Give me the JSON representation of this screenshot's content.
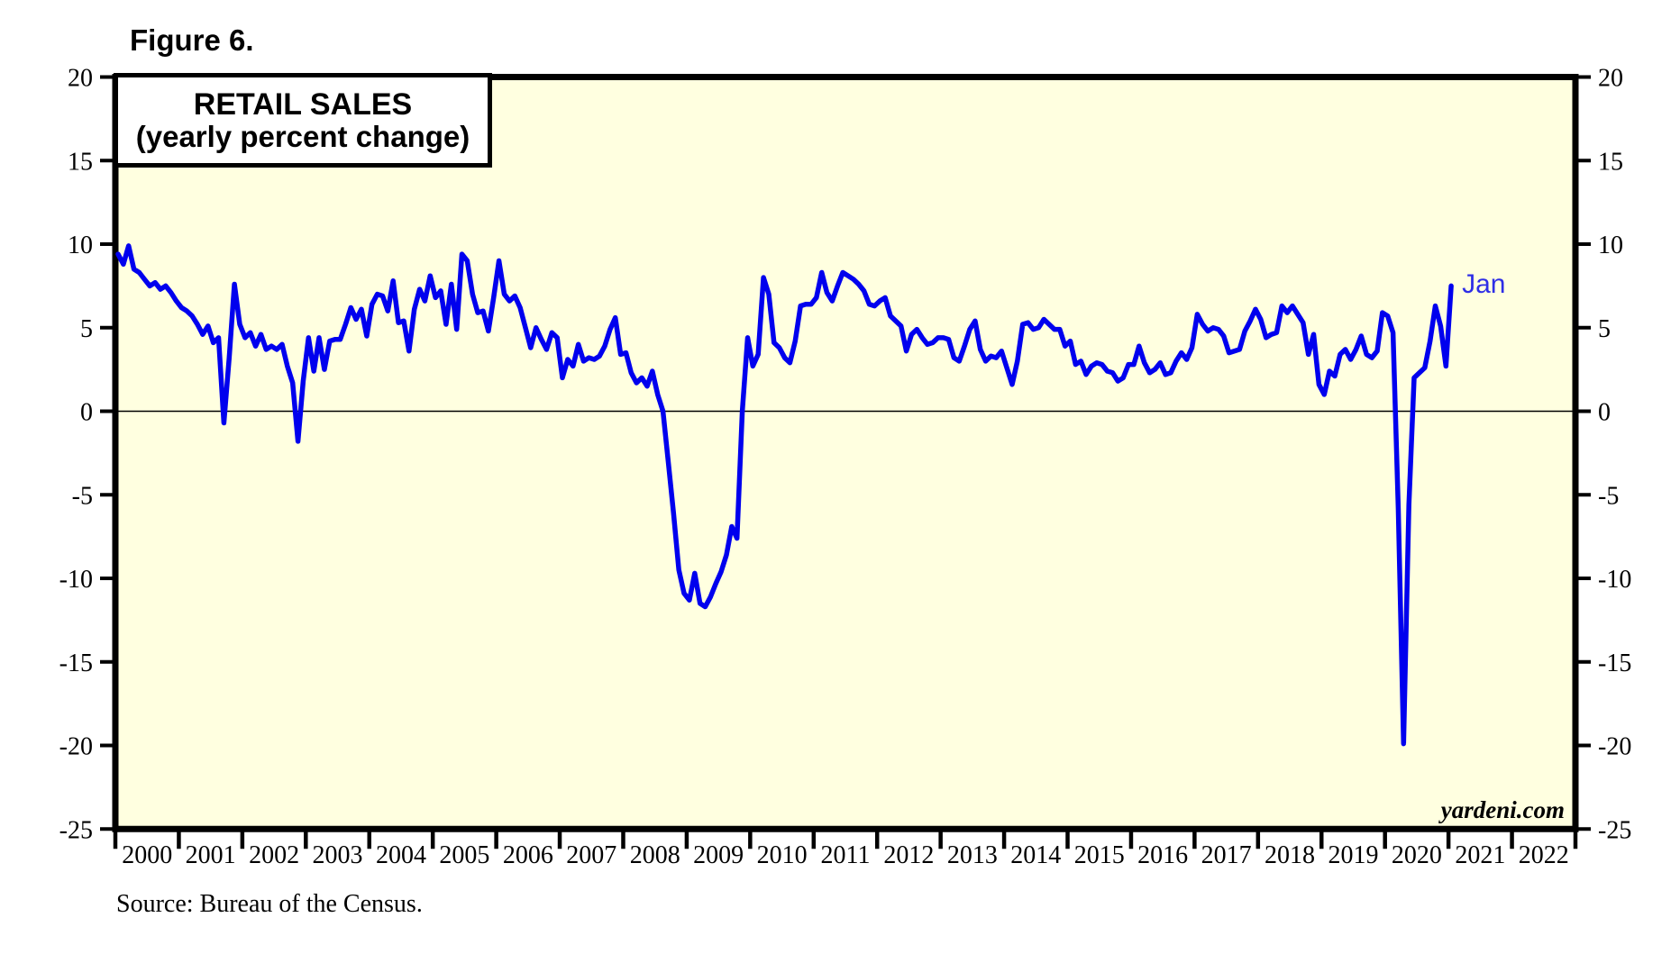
{
  "figure_label": "Figure 6.",
  "title": {
    "line1": "RETAIL SALES",
    "line2": "(yearly percent change)"
  },
  "source_note": "Source: Bureau of the Census.",
  "watermark": "yardeni.com",
  "end_label": "Jan",
  "colors": {
    "line": "#0000ee",
    "plot_bg": "#ffffe0",
    "frame": "#000000",
    "end_label": "#2e2ee6",
    "page_bg": "#ffffff"
  },
  "chart_data": {
    "type": "line",
    "title": "RETAIL SALES (yearly percent change)",
    "unit": "percent",
    "frequency": "monthly",
    "x_start": "2000-01",
    "x_end": "2021-01",
    "ylim": [
      -25,
      20
    ],
    "yticks": [
      20,
      15,
      10,
      5,
      0,
      -5,
      -10,
      -15,
      -20,
      -25
    ],
    "xtick_years": [
      "2000",
      "2001",
      "2002",
      "2003",
      "2004",
      "2005",
      "2006",
      "2007",
      "2008",
      "2009",
      "2010",
      "2011",
      "2012",
      "2013",
      "2014",
      "2015",
      "2016",
      "2017",
      "2018",
      "2019",
      "2020",
      "2021",
      "2022"
    ],
    "grid": "zero-line-only",
    "legend": "none",
    "end_point": {
      "label": "Jan",
      "value": 7.5
    },
    "series": [
      {
        "name": "Retail sales yearly percent change",
        "values": [
          9.4,
          8.8,
          9.9,
          8.5,
          8.3,
          7.9,
          7.5,
          7.7,
          7.3,
          7.5,
          7.1,
          6.6,
          6.2,
          6.0,
          5.7,
          5.2,
          4.6,
          5.1,
          4.1,
          4.4,
          -0.7,
          3.2,
          7.6,
          5.2,
          4.4,
          4.7,
          3.9,
          4.6,
          3.7,
          3.9,
          3.7,
          4.0,
          2.7,
          1.7,
          -1.8,
          1.8,
          4.4,
          2.4,
          4.4,
          2.5,
          4.2,
          4.3,
          4.3,
          5.2,
          6.2,
          5.5,
          6.1,
          4.5,
          6.4,
          7.0,
          6.9,
          6.0,
          7.8,
          5.3,
          5.4,
          3.6,
          6.1,
          7.3,
          6.6,
          8.1,
          6.8,
          7.2,
          5.2,
          7.6,
          4.9,
          9.4,
          9.0,
          7.0,
          5.9,
          6.0,
          4.8,
          6.8,
          9.0,
          7.0,
          6.6,
          6.9,
          6.2,
          5.0,
          3.8,
          5.0,
          4.3,
          3.7,
          4.7,
          4.4,
          2.0,
          3.1,
          2.7,
          4.0,
          3.0,
          3.2,
          3.1,
          3.3,
          3.9,
          4.9,
          5.6,
          3.4,
          3.5,
          2.3,
          1.7,
          2.0,
          1.5,
          2.4,
          1.0,
          0.0,
          -3.0,
          -6.1,
          -9.5,
          -10.9,
          -11.3,
          -9.7,
          -11.5,
          -11.7,
          -11.1,
          -10.3,
          -9.6,
          -8.6,
          -6.9,
          -7.6,
          0.0,
          4.4,
          2.7,
          3.4,
          8.0,
          7.0,
          4.1,
          3.8,
          3.2,
          2.9,
          4.2,
          6.3,
          6.4,
          6.4,
          6.8,
          8.3,
          7.1,
          6.6,
          7.5,
          8.3,
          8.1,
          7.9,
          7.6,
          7.2,
          6.4,
          6.3,
          6.6,
          6.8,
          5.7,
          5.4,
          5.1,
          3.6,
          4.6,
          4.9,
          4.4,
          4.0,
          4.1,
          4.4,
          4.4,
          4.3,
          3.2,
          3.0,
          3.9,
          4.9,
          5.4,
          3.7,
          3.0,
          3.3,
          3.2,
          3.6,
          2.6,
          1.6,
          3.0,
          5.2,
          5.3,
          4.9,
          5.0,
          5.5,
          5.2,
          4.9,
          4.9,
          3.9,
          4.2,
          2.8,
          3.0,
          2.2,
          2.7,
          2.9,
          2.8,
          2.4,
          2.3,
          1.8,
          2.0,
          2.8,
          2.8,
          3.9,
          2.9,
          2.3,
          2.5,
          2.9,
          2.2,
          2.3,
          3.0,
          3.5,
          3.1,
          3.8,
          5.8,
          5.2,
          4.8,
          5.0,
          4.9,
          4.5,
          3.5,
          3.6,
          3.7,
          4.8,
          5.4,
          6.1,
          5.5,
          4.4,
          4.6,
          4.7,
          6.3,
          5.9,
          6.3,
          5.8,
          5.3,
          3.4,
          4.6,
          1.6,
          1.0,
          2.4,
          2.1,
          3.4,
          3.7,
          3.1,
          3.7,
          4.5,
          3.4,
          3.2,
          3.6,
          5.9,
          5.7,
          4.7,
          -5.8,
          -19.9,
          -5.6,
          2.0,
          2.3,
          2.6,
          4.2,
          6.3,
          5.1,
          2.7,
          7.5
        ]
      }
    ]
  }
}
